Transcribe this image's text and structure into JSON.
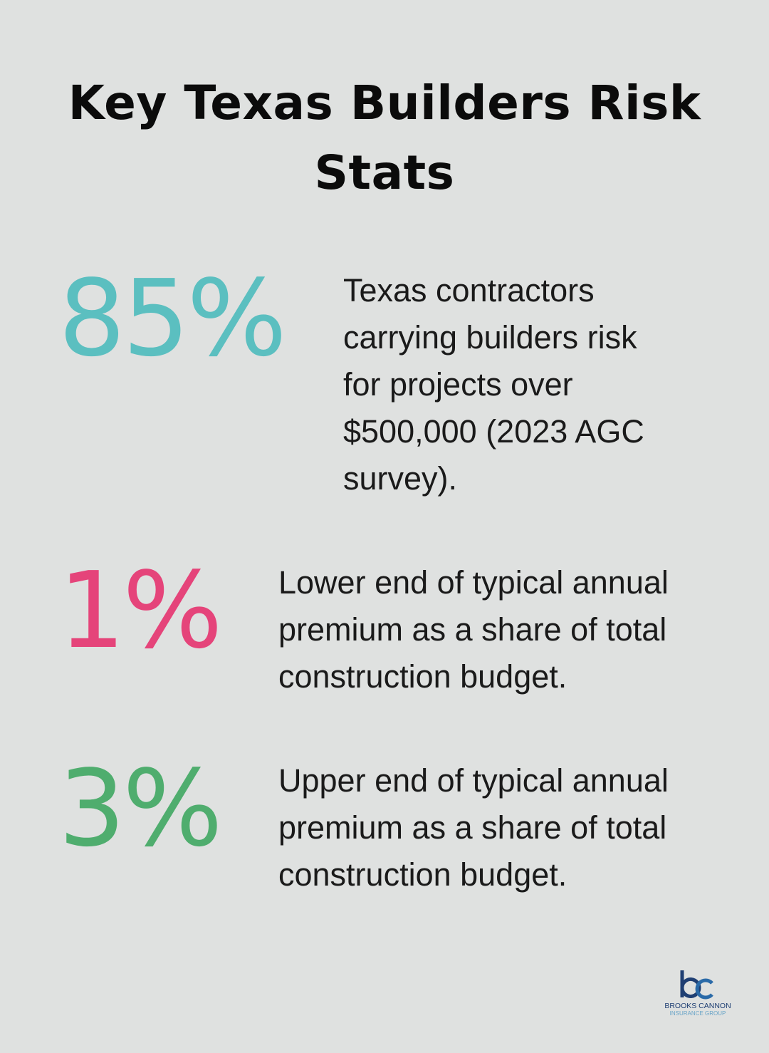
{
  "title": "Key Texas Builders Risk Stats",
  "stats": [
    {
      "value": "85%",
      "color": "#5bbfc0",
      "description": "Texas contractors carrying builders risk for projects over $500,000 (2023 AGC survey)."
    },
    {
      "value": "1%",
      "color": "#e5447a",
      "description": "Lower end of typical annual premium as a share of total construction budget."
    },
    {
      "value": "3%",
      "color": "#4fad6e",
      "description": "Upper end of typical annual premium as a share of total construction budget."
    }
  ],
  "logo": {
    "line1": "BROOKS CANNON",
    "line2": "INSURANCE GROUP"
  }
}
